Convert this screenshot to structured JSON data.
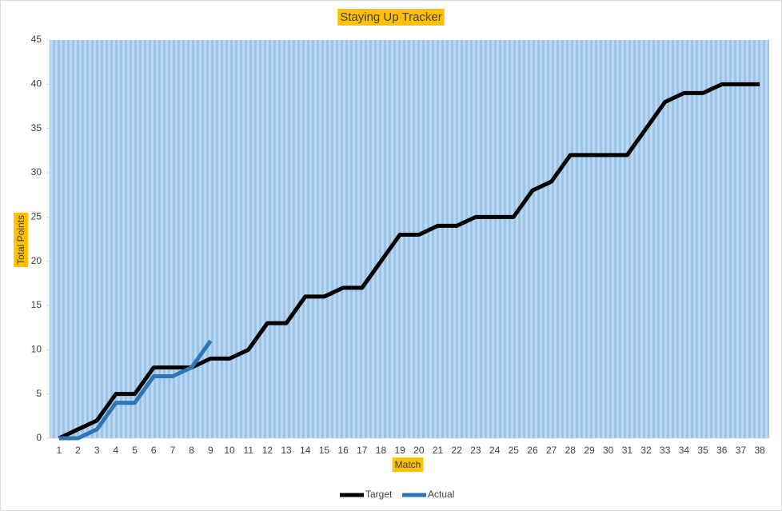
{
  "chart_data": {
    "type": "line",
    "title": "Staying Up Tracker",
    "x_label": "Match",
    "y_label": "Total Points",
    "categories": [
      1,
      2,
      3,
      4,
      5,
      6,
      7,
      8,
      9,
      10,
      11,
      12,
      13,
      14,
      15,
      16,
      17,
      18,
      19,
      20,
      21,
      22,
      23,
      24,
      25,
      26,
      27,
      28,
      29,
      30,
      31,
      32,
      33,
      34,
      35,
      36,
      37,
      38
    ],
    "series": [
      {
        "name": "Target",
        "color": "#000000",
        "values": [
          0,
          1,
          2,
          5,
          5,
          8,
          8,
          8,
          9,
          9,
          10,
          13,
          13,
          16,
          16,
          17,
          17,
          20,
          23,
          23,
          24,
          24,
          25,
          25,
          25,
          28,
          29,
          32,
          32,
          32,
          32,
          35,
          38,
          39,
          39,
          40,
          40,
          40
        ]
      },
      {
        "name": "Actual",
        "color": "#2e75b6",
        "values": [
          0,
          0,
          1,
          4,
          4,
          7,
          7,
          8,
          11,
          null,
          null,
          null,
          null,
          null,
          null,
          null,
          null,
          null,
          null,
          null,
          null,
          null,
          null,
          null,
          null,
          null,
          null,
          null,
          null,
          null,
          null,
          null,
          null,
          null,
          null,
          null,
          null,
          null
        ]
      }
    ],
    "ylim": [
      0,
      45
    ],
    "yticks": [
      0,
      5,
      10,
      15,
      20,
      25,
      30,
      35,
      40,
      45
    ],
    "legend": "bottom"
  }
}
